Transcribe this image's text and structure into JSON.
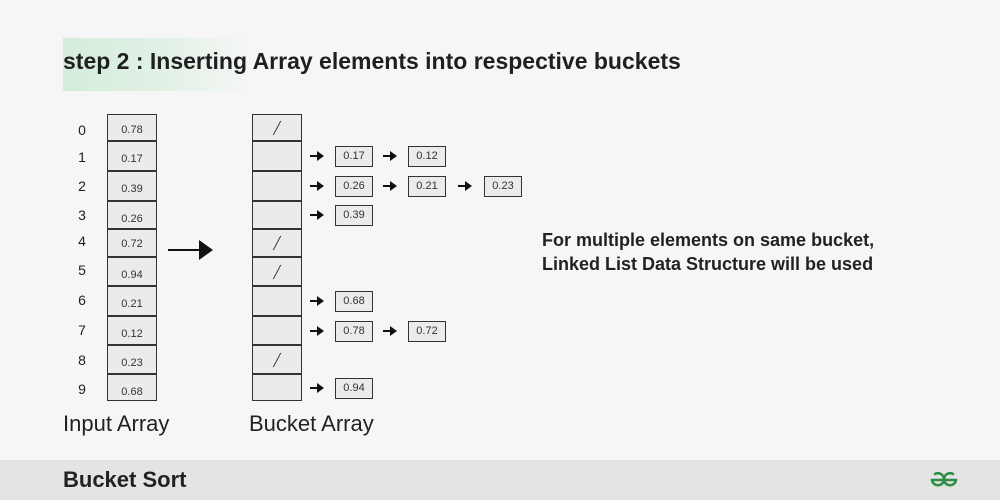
{
  "title": "step 2 : Inserting Array elements into respective buckets",
  "input_array": {
    "label": "Input Array",
    "indices": [
      "0",
      "1",
      "2",
      "3",
      "4",
      "5",
      "6",
      "7",
      "8",
      "9"
    ],
    "values": [
      "0.78",
      "0.17",
      "0.39",
      "0.26",
      "0.72",
      "0.94",
      "0.21",
      "0.12",
      "0.23",
      "0.68"
    ]
  },
  "bucket_array": {
    "label": "Bucket Array",
    "buckets": [
      {
        "index": "0",
        "empty": true,
        "items": []
      },
      {
        "index": "1",
        "empty": false,
        "items": [
          "0.17",
          "0.12"
        ]
      },
      {
        "index": "2",
        "empty": false,
        "items": [
          "0.26",
          "0.21",
          "0.23"
        ]
      },
      {
        "index": "3",
        "empty": false,
        "items": [
          "0.39"
        ]
      },
      {
        "index": "4",
        "empty": true,
        "items": []
      },
      {
        "index": "5",
        "empty": true,
        "items": []
      },
      {
        "index": "6",
        "empty": false,
        "items": [
          "0.68"
        ]
      },
      {
        "index": "7",
        "empty": false,
        "items": [
          "0.78",
          "0.72"
        ]
      },
      {
        "index": "8",
        "empty": true,
        "items": []
      },
      {
        "index": "9",
        "empty": false,
        "items": [
          "0.94"
        ]
      }
    ]
  },
  "note": {
    "line1": "For multiple elements on same bucket,",
    "line2": "Linked List Data Structure will be used"
  },
  "footer": {
    "title": "Bucket Sort",
    "logo_icon": "gfg-logo-icon",
    "logo_color": "#2f8d46"
  }
}
